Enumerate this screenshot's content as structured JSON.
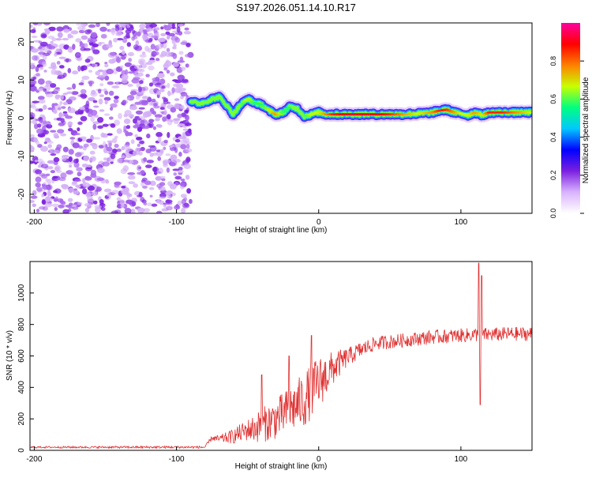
{
  "title": "S197.2026.051.14.10.R17",
  "chart_data": [
    {
      "type": "heatmap",
      "name": "spectrogram",
      "xlabel": "Height of straight line (km)",
      "ylabel": "Frequency (Hz)",
      "xlim": [
        -203,
        150
      ],
      "ylim": [
        -25,
        25
      ],
      "x_ticks": [
        -200,
        -100,
        0,
        100
      ],
      "y_ticks": [
        20,
        10,
        0,
        -10,
        -20
      ],
      "colorbar": {
        "label": "Normalized spectral amplitude",
        "range": [
          0,
          1
        ],
        "ticks": [
          "0.0",
          "0.2",
          "0.4",
          "0.6",
          "0.8"
        ],
        "colors": [
          "#ffffff",
          "#d9b3ff",
          "#7b20e0",
          "#0000ff",
          "#00c8ff",
          "#00ff80",
          "#c8ff00",
          "#ff8000",
          "#ff0000",
          "#ff00a0"
        ]
      },
      "noise_region_x": [
        -203,
        -90
      ],
      "signal_track": {
        "x": [
          -90,
          -85,
          -80,
          -75,
          -70,
          -65,
          -60,
          -55,
          -50,
          -45,
          -40,
          -35,
          -30,
          -25,
          -20,
          -15,
          -10,
          -5,
          0,
          5,
          10,
          20,
          30,
          40,
          50,
          60,
          70,
          80,
          85,
          90,
          95,
          100,
          105,
          110,
          115,
          120,
          130,
          140,
          150
        ],
        "freq": [
          4.5,
          3.8,
          4.2,
          5.0,
          5.5,
          3.5,
          1.0,
          3.5,
          5.0,
          4.0,
          3.5,
          2.0,
          1.0,
          1.5,
          3.0,
          2.5,
          0.5,
          1.0,
          1.5,
          1.0,
          1.0,
          1.0,
          1.0,
          1.0,
          1.0,
          1.0,
          1.2,
          1.5,
          2.0,
          2.2,
          1.5,
          1.2,
          0.8,
          1.5,
          0.8,
          1.5,
          1.5,
          1.5,
          1.5
        ],
        "amp": [
          0.3,
          0.4,
          0.4,
          0.5,
          0.4,
          0.5,
          0.4,
          0.6,
          0.7,
          0.6,
          0.6,
          0.7,
          0.8,
          0.6,
          0.6,
          0.5,
          0.6,
          0.7,
          0.7,
          0.8,
          0.9,
          0.95,
          0.95,
          0.95,
          0.9,
          0.8,
          0.7,
          0.8,
          0.9,
          0.9,
          0.8,
          0.7,
          0.7,
          0.8,
          0.7,
          0.9,
          0.9,
          0.8,
          0.7
        ]
      }
    },
    {
      "type": "line",
      "name": "snr",
      "xlabel": "Height of straight line (km)",
      "ylabel": "SNR (10 * v/v)",
      "xlim": [
        -203,
        150
      ],
      "ylim": [
        0,
        1200
      ],
      "x_ticks": [
        -200,
        -100,
        0,
        100
      ],
      "y_ticks": [
        0,
        200,
        400,
        600,
        800,
        1000
      ],
      "line_color": "#e03030",
      "baseline": {
        "x": [
          -203,
          -80,
          -75,
          -70,
          -60,
          -50,
          -45,
          -40,
          -30,
          -20,
          -10,
          -5,
          0,
          10,
          20,
          30,
          40,
          60,
          80,
          100,
          110,
          120,
          135,
          150
        ],
        "y": [
          20,
          20,
          80,
          70,
          90,
          130,
          140,
          160,
          200,
          260,
          320,
          380,
          430,
          520,
          590,
          640,
          680,
          700,
          720,
          730,
          735,
          735,
          740,
          740
        ]
      },
      "noise_amplitude": {
        "x": [
          -203,
          -80,
          -70,
          -50,
          -40,
          -20,
          -10,
          0,
          10,
          20,
          40,
          80,
          120,
          150
        ],
        "y": [
          6,
          8,
          25,
          70,
          110,
          150,
          180,
          170,
          110,
          60,
          45,
          45,
          45,
          45
        ]
      },
      "spikes": [
        {
          "x": -40,
          "y": 480
        },
        {
          "x": -21,
          "y": 600
        },
        {
          "x": -5,
          "y": 730
        },
        {
          "x": 112.5,
          "y": 1190
        },
        {
          "x": 113.5,
          "y": 290
        },
        {
          "x": 114.5,
          "y": 1110
        }
      ]
    }
  ]
}
